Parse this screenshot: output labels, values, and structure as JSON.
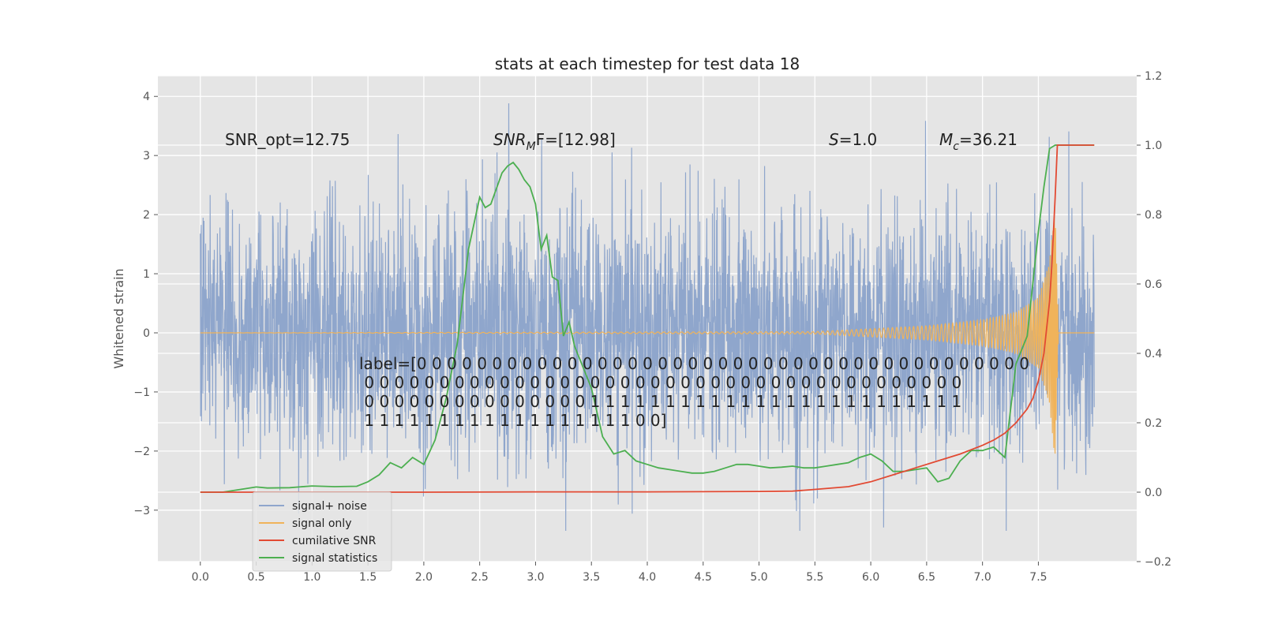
{
  "chart_data": {
    "type": "line",
    "title": "stats at each timestep for test data 18",
    "ylabel": "Whitened strain",
    "xlabel": "",
    "xlim": [
      -0.38,
      8.38
    ],
    "ylim": [
      -3.87,
      4.35
    ],
    "y2lim": [
      -0.2,
      1.2
    ],
    "grid": true,
    "legend_position": "bottom-left",
    "x_ticks": [
      "0.0",
      "0.5",
      "1.0",
      "1.5",
      "2.0",
      "2.5",
      "3.0",
      "3.5",
      "4.0",
      "4.5",
      "5.0",
      "5.5",
      "6.0",
      "6.5",
      "7.0",
      "7.5"
    ],
    "y_ticks": [
      "−3",
      "−2",
      "−1",
      "0",
      "1",
      "2",
      "3",
      "4"
    ],
    "y2_ticks": [
      "−0.2",
      "0.0",
      "0.2",
      "0.4",
      "0.6",
      "0.8",
      "1.0",
      "1.2"
    ],
    "annotations": {
      "snr_opt": "SNR_opt=12.75",
      "snr_mf_main": "SNR",
      "snr_mf_sub": "M",
      "snr_mf_tail": "F=[12.98]",
      "s_italic": "S",
      "s_value": "=1.0",
      "mc_main": "M",
      "mc_sub": "c",
      "mc_value": "=36.21"
    },
    "label_lines": [
      "label=[0 0 0 0 0 0 0 0 0 0 0 0 0 0 0 0 0 0 0 0 0 0 0 0 0 0 0 0 0 0 0 0 0 0 0 0 0 0 0 0 0",
      " 0 0 0 0 0 0 0 0 0 0 0 0 0 0 0 0 0 0 0 0 0 0 0 0 0 0 0 0 0 0 0 0 0 0 0 0 0 0 0 0",
      " 0 0 0 0 0 0 0 0 0 0 0 0 0 0 0 1 1 1 1 1 1 1 1 1 1 1 1 1 1 1 1 1 1 1 1 1 1 1 1 1",
      " 1 1 1 1 1 1 1 1 1 1 1 1 1 1 1 1 1 1 0 0]"
    ],
    "legend": [
      {
        "name": "signal+ noise",
        "color": "#8fa6cc"
      },
      {
        "name": "signal only",
        "color": "#f0b35a"
      },
      {
        "name": "cumilative SNR",
        "color": "#e24a33"
      },
      {
        "name": "signal statistics",
        "color": "#4caf50"
      }
    ],
    "colors": {
      "noise": "#8fa6cc",
      "signal": "#f0b35a",
      "cumulative": "#e24a33",
      "statistics": "#4caf50"
    },
    "series": [
      {
        "name": "signal+ noise",
        "axis": "left",
        "description_shape": "dense noise fill",
        "x_range": [
          0.0,
          8.0
        ],
        "envelope_min": -3.35,
        "envelope_max": 4.0,
        "typical_amplitude": 1.2
      },
      {
        "name": "signal only",
        "axis": "left",
        "x": [
          0.0,
          5.5,
          6.0,
          6.5,
          7.0,
          7.3,
          7.5,
          7.6,
          7.65,
          7.68,
          8.0
        ],
        "amplitude": [
          0.0,
          0.02,
          0.07,
          0.12,
          0.22,
          0.35,
          0.6,
          1.2,
          2.2,
          0.0,
          0.0
        ]
      },
      {
        "name": "cumilative SNR",
        "axis": "right",
        "x": [
          0.0,
          0.5,
          1.0,
          2.0,
          3.0,
          4.0,
          5.0,
          5.3,
          5.5,
          5.8,
          6.0,
          6.2,
          6.4,
          6.6,
          6.8,
          7.0,
          7.1,
          7.2,
          7.3,
          7.4,
          7.45,
          7.5,
          7.55,
          7.6,
          7.62,
          7.65,
          7.67,
          7.7,
          8.0
        ],
        "values": [
          0.0,
          0.0,
          0.0,
          0.0,
          0.001,
          0.001,
          0.002,
          0.003,
          0.008,
          0.016,
          0.03,
          0.05,
          0.07,
          0.09,
          0.11,
          0.135,
          0.15,
          0.17,
          0.2,
          0.24,
          0.27,
          0.32,
          0.4,
          0.55,
          0.65,
          0.85,
          1.0,
          1.0,
          1.0
        ]
      },
      {
        "name": "signal statistics",
        "axis": "right",
        "x": [
          0.0,
          0.2,
          0.4,
          0.5,
          0.6,
          0.8,
          1.0,
          1.2,
          1.4,
          1.5,
          1.6,
          1.7,
          1.8,
          1.9,
          2.0,
          2.1,
          2.2,
          2.3,
          2.4,
          2.5,
          2.55,
          2.6,
          2.7,
          2.75,
          2.8,
          2.85,
          2.9,
          2.95,
          3.0,
          3.05,
          3.1,
          3.15,
          3.2,
          3.25,
          3.3,
          3.35,
          3.4,
          3.5,
          3.6,
          3.7,
          3.8,
          3.9,
          4.0,
          4.1,
          4.2,
          4.3,
          4.4,
          4.5,
          4.6,
          4.7,
          4.8,
          4.9,
          5.0,
          5.1,
          5.2,
          5.3,
          5.4,
          5.5,
          5.6,
          5.7,
          5.8,
          5.9,
          6.0,
          6.1,
          6.2,
          6.3,
          6.4,
          6.5,
          6.6,
          6.7,
          6.8,
          6.9,
          7.0,
          7.1,
          7.2,
          7.3,
          7.4,
          7.5,
          7.55,
          7.6,
          7.65,
          7.7,
          8.0
        ],
        "values": [
          0.0,
          0.0,
          0.01,
          0.015,
          0.012,
          0.013,
          0.018,
          0.016,
          0.017,
          0.03,
          0.05,
          0.085,
          0.07,
          0.1,
          0.08,
          0.15,
          0.27,
          0.43,
          0.7,
          0.85,
          0.82,
          0.83,
          0.92,
          0.94,
          0.95,
          0.93,
          0.9,
          0.88,
          0.83,
          0.7,
          0.74,
          0.62,
          0.61,
          0.45,
          0.49,
          0.42,
          0.38,
          0.3,
          0.16,
          0.11,
          0.12,
          0.09,
          0.08,
          0.07,
          0.065,
          0.06,
          0.055,
          0.055,
          0.06,
          0.07,
          0.08,
          0.08,
          0.075,
          0.07,
          0.072,
          0.075,
          0.07,
          0.07,
          0.075,
          0.08,
          0.085,
          0.1,
          0.11,
          0.09,
          0.06,
          0.06,
          0.065,
          0.07,
          0.03,
          0.04,
          0.09,
          0.12,
          0.12,
          0.13,
          0.1,
          0.37,
          0.45,
          0.75,
          0.88,
          0.99,
          1.0,
          1.0,
          1.0
        ]
      }
    ]
  }
}
